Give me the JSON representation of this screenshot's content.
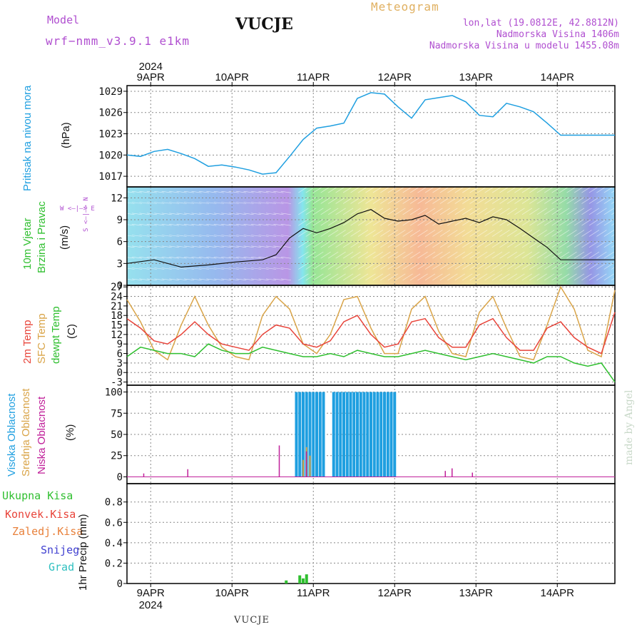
{
  "header": {
    "model_label": "Model",
    "model_name": "wrf−nmm_v3.9.1  e1km",
    "station": "VUCJE",
    "meteogram_title": "Meteogram",
    "coords": "lon,lat (19.0812E, 42.8812N)",
    "altitude": "Nadmorska Visina 1406m",
    "model_altitude": "Nadmorska Visina u modelu 1455.08m"
  },
  "footer": {
    "station": "VUCJE",
    "watermark": "made by Angel"
  },
  "time_axis": {
    "year": "2024",
    "days": [
      "9APR",
      "10APR",
      "11APR",
      "12APR",
      "13APR",
      "14APR"
    ],
    "start_hour": 0,
    "end_hour": 144
  },
  "panels": {
    "pressure": {
      "label_lines": [
        "Pritisak na nivou mora"
      ],
      "unit": "(hPa)",
      "ticks": [
        "1017",
        "1020",
        "1023",
        "1026",
        "1029"
      ],
      "color": "#1f9fe0"
    },
    "wind": {
      "label_lines": [
        "10m Vjetar",
        "Brzina i Pravac"
      ],
      "unit": "(m/s)",
      "ticks": [
        "0",
        "3",
        "6",
        "9",
        "12"
      ],
      "compass": "W <—|—> E",
      "compass_v": "S <—|—> N"
    },
    "temp": {
      "label_lines": [
        "2m Temp",
        "SFC Temp",
        "dewpt Temp"
      ],
      "unit": "(C)",
      "ticks": [
        "-3",
        "0",
        "3",
        "6",
        "9",
        "12",
        "15",
        "18",
        "21",
        "24",
        "27"
      ],
      "colors": {
        "t2m": "#e8443a",
        "sfc": "#d9a448",
        "dew": "#2fbf2f"
      }
    },
    "cloud": {
      "label_lines": [
        "Visoka Oblacnost",
        "Srednja Oblacnost",
        "Niska Oblacnost"
      ],
      "unit": "(%)",
      "ticks": [
        "0",
        "25",
        "50",
        "75",
        "100"
      ],
      "colors": {
        "high": "#1f9fe0",
        "mid": "#d9a448",
        "low": "#c0209a"
      }
    },
    "precip": {
      "legend": [
        "Ukupna Kisa",
        "Konvek.Kisa",
        "Zaledj.Kisa",
        "Snijeg",
        "Grad"
      ],
      "legend_colors": [
        "#2fbf2f",
        "#e8443a",
        "#e8803a",
        "#4040d0",
        "#30c0c0"
      ],
      "unit": "1hr Precip (mm)",
      "ticks": [
        "0",
        "0.2",
        "0.4",
        "0.6",
        "0.8"
      ]
    }
  },
  "chart_data": [
    {
      "type": "line",
      "title": "Pritisak na nivou mora",
      "ylabel": "(hPa)",
      "ylim": [
        1015.5,
        1029.8
      ],
      "x": [
        0,
        4,
        8,
        12,
        16,
        20,
        24,
        28,
        32,
        36,
        40,
        44,
        48,
        52,
        56,
        60,
        64,
        68,
        72,
        76,
        80,
        84,
        88,
        92,
        96,
        100,
        104,
        108,
        112,
        116,
        120,
        124,
        128,
        132,
        136,
        140,
        144
      ],
      "series": [
        {
          "values": [
            1020,
            1019.8,
            1020.5,
            1020.8,
            1020.2,
            1019.5,
            1018.4,
            1018.6,
            1018.3,
            1017.9,
            1017.3,
            1017.5,
            1019.8,
            1022.2,
            1023.8,
            1024.1,
            1024.5,
            1028,
            1028.8,
            1028.6,
            1026.8,
            1025.2,
            1027.8,
            1028.1,
            1028.4,
            1027.5,
            1025.6,
            1025.4,
            1027.3,
            1026.8,
            1026.1,
            1024.5,
            1022.8,
            1022.8,
            1022.8,
            1022.8,
            1022.8
          ]
        }
      ]
    },
    {
      "type": "line",
      "title": "10m Vjetar",
      "ylabel": "(m/s)",
      "ylim": [
        0,
        13.5
      ],
      "x": [
        0,
        8,
        16,
        24,
        32,
        40,
        44,
        48,
        52,
        56,
        60,
        64,
        68,
        72,
        76,
        80,
        84,
        88,
        92,
        96,
        100,
        104,
        108,
        112,
        116,
        120,
        124,
        128,
        132,
        136,
        140,
        144
      ],
      "series": [
        {
          "name": "speed",
          "values": [
            3,
            3.5,
            2.5,
            2.8,
            3.2,
            3.5,
            4.2,
            6.5,
            7.8,
            7.2,
            7.8,
            8.6,
            9.8,
            10.4,
            9.2,
            8.8,
            9.0,
            9.6,
            8.4,
            8.8,
            9.2,
            8.6,
            9.4,
            9.0,
            7.8,
            6.5,
            5.2,
            3.5,
            3.5,
            3.5,
            3.5,
            3.5
          ]
        }
      ]
    },
    {
      "type": "line",
      "title": "2m Temp / SFC Temp / dewpt Temp",
      "ylabel": "(C)",
      "ylim": [
        -4,
        27.5
      ],
      "x": [
        0,
        4,
        8,
        12,
        16,
        20,
        24,
        28,
        32,
        36,
        40,
        44,
        48,
        52,
        56,
        60,
        64,
        68,
        72,
        76,
        80,
        84,
        88,
        92,
        96,
        100,
        104,
        108,
        112,
        116,
        120,
        124,
        128,
        132,
        136,
        140,
        144
      ],
      "series": [
        {
          "name": "2m Temp",
          "values": [
            17,
            14,
            10,
            9,
            12,
            16,
            12,
            9,
            8,
            7,
            12,
            15,
            14,
            9,
            8,
            10,
            16,
            18,
            12,
            8,
            9,
            16,
            17,
            11,
            8,
            8,
            15,
            17,
            11,
            7,
            7,
            14,
            16,
            11,
            8,
            6,
            19
          ]
        },
        {
          "name": "SFC Temp",
          "values": [
            23,
            16,
            7,
            4,
            15,
            24,
            15,
            8,
            5,
            4,
            18,
            24,
            20,
            9,
            6,
            12,
            23,
            24,
            14,
            6,
            6,
            20,
            24,
            13,
            6,
            5,
            19,
            24,
            14,
            5,
            4,
            15,
            27,
            20,
            7,
            5,
            26
          ]
        },
        {
          "name": "dewpt Temp",
          "values": [
            5,
            8,
            7,
            6,
            6,
            5,
            9,
            7,
            6,
            6,
            8,
            7,
            6,
            5,
            5,
            6,
            5,
            7,
            6,
            5,
            5,
            6,
            7,
            6,
            5,
            4,
            5,
            6,
            5,
            4,
            3,
            5,
            5,
            3,
            2,
            3,
            -3
          ]
        }
      ]
    },
    {
      "type": "bar",
      "title": "Oblacnost",
      "ylabel": "(%)",
      "ylim": [
        0,
        100
      ],
      "series": [
        {
          "name": "Visoka Oblacnost",
          "x_range": [
            [
              50,
              58
            ],
            [
              61,
              79
            ]
          ],
          "values": [
            100,
            100
          ]
        },
        {
          "name": "Srednja Oblacnost",
          "x": [
            52,
            53,
            54
          ],
          "values": [
            20,
            35,
            25
          ]
        },
        {
          "name": "Niska Oblacnost",
          "x": [
            5,
            18,
            45,
            53,
            94,
            96,
            102
          ],
          "values": [
            4,
            9,
            37,
            30,
            7,
            10,
            5
          ]
        }
      ]
    },
    {
      "type": "bar",
      "title": "1hr Precip",
      "ylabel": "(mm)",
      "ylim": [
        0,
        1
      ],
      "series": [
        {
          "name": "Ukupna Kisa",
          "x": [
            47,
            51,
            52,
            53
          ],
          "values": [
            0.03,
            0.08,
            0.05,
            0.09
          ]
        }
      ]
    }
  ]
}
